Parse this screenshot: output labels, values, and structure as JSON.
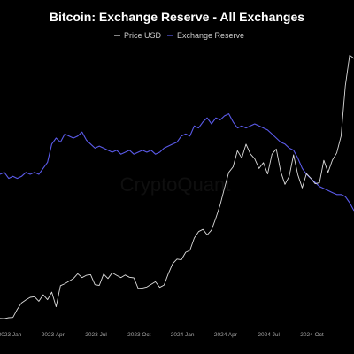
{
  "chart_data": {
    "type": "line",
    "title": "Bitcoin: Exchange Reserve - All Exchanges",
    "watermark": "CryptoQuant",
    "legend": {
      "placement": "top-center"
    },
    "grid": false,
    "xlim": [
      0,
      24.6
    ],
    "x_ticks": [
      "2023 Jan",
      "2023 Apr",
      "2023 Jul",
      "2023 Oct",
      "2024 Jan",
      "2024 Apr",
      "2024 Jul",
      "2024 Oct"
    ],
    "colors": {
      "background": "#000000",
      "price": "#dcdcdc",
      "reserve": "#5b5bea",
      "title": "#ffffff",
      "ticks": "#a8a8a8"
    },
    "series": [
      {
        "name": "Price USD",
        "x": [
          0,
          0.3,
          0.6,
          0.9,
          1.2,
          1.5,
          1.8,
          2.1,
          2.4,
          2.7,
          3.0,
          3.3,
          3.6,
          3.9,
          4.2,
          4.5,
          4.8,
          5.1,
          5.4,
          5.7,
          6.0,
          6.3,
          6.6,
          6.9,
          7.2,
          7.5,
          7.8,
          8.1,
          8.4,
          8.7,
          9.0,
          9.3,
          9.6,
          9.9,
          10.2,
          10.5,
          10.8,
          11.1,
          11.4,
          11.7,
          12.0,
          12.3,
          12.6,
          12.9,
          13.2,
          13.5,
          13.8,
          14.1,
          14.4,
          14.7,
          15.0,
          15.3,
          15.6,
          15.9,
          16.2,
          16.5,
          16.8,
          17.1,
          17.4,
          17.7,
          18.0,
          18.3,
          18.6,
          18.9,
          19.2,
          19.5,
          19.8,
          20.1,
          20.4,
          20.7,
          21.0,
          21.3,
          21.6,
          21.9,
          22.2,
          22.5,
          22.8,
          23.1,
          23.4,
          23.7,
          24.0,
          24.3,
          24.6
        ],
        "values": [
          16700,
          16600,
          16900,
          17000,
          19500,
          21500,
          22400,
          23200,
          23400,
          22000,
          24000,
          22500,
          24800,
          20300,
          26800,
          27400,
          28200,
          29000,
          30500,
          29300,
          30000,
          30200,
          27100,
          26900,
          30400,
          29000,
          30800,
          30000,
          29300,
          30100,
          29400,
          29200,
          26000,
          26100,
          26400,
          27200,
          28000,
          26300,
          27000,
          30500,
          33600,
          35000,
          34800,
          37100,
          37700,
          41500,
          43500,
          44200,
          42500,
          44000,
          47700,
          51800,
          57000,
          61800,
          63500,
          68500,
          66200,
          70500,
          67500,
          66000,
          63000,
          64800,
          61300,
          67400,
          69000,
          62100,
          58100,
          60600,
          67200,
          61000,
          57000,
          61400,
          60000,
          58300,
          58600,
          65500,
          61800,
          65600,
          67800,
          73000,
          88500,
          98000,
          97000
        ]
      },
      {
        "name": "Exchange Reserve",
        "x": [
          0,
          0.3,
          0.6,
          0.9,
          1.2,
          1.5,
          1.8,
          2.1,
          2.4,
          2.7,
          3.0,
          3.3,
          3.6,
          3.9,
          4.2,
          4.5,
          4.8,
          5.1,
          5.4,
          5.7,
          6.0,
          6.3,
          6.6,
          6.9,
          7.2,
          7.5,
          7.8,
          8.1,
          8.4,
          8.7,
          9.0,
          9.3,
          9.6,
          9.9,
          10.2,
          10.5,
          10.8,
          11.1,
          11.4,
          11.7,
          12.0,
          12.3,
          12.6,
          12.9,
          13.2,
          13.5,
          13.8,
          14.1,
          14.4,
          14.7,
          15.0,
          15.3,
          15.6,
          15.9,
          16.2,
          16.5,
          16.8,
          17.1,
          17.4,
          17.7,
          18.0,
          18.3,
          18.6,
          18.9,
          19.2,
          19.5,
          19.8,
          20.1,
          20.4,
          20.7,
          21.0,
          21.3,
          21.6,
          21.9,
          22.2,
          22.5,
          22.8,
          23.1,
          23.4,
          23.7,
          24.0,
          24.3,
          24.6
        ],
        "values": [
          0.32,
          0.33,
          0.3,
          0.31,
          0.3,
          0.31,
          0.33,
          0.32,
          0.33,
          0.32,
          0.35,
          0.38,
          0.47,
          0.5,
          0.48,
          0.52,
          0.51,
          0.5,
          0.51,
          0.53,
          0.49,
          0.47,
          0.45,
          0.46,
          0.45,
          0.44,
          0.43,
          0.44,
          0.42,
          0.43,
          0.44,
          0.42,
          0.43,
          0.44,
          0.43,
          0.44,
          0.42,
          0.43,
          0.45,
          0.46,
          0.47,
          0.48,
          0.51,
          0.52,
          0.51,
          0.56,
          0.55,
          0.58,
          0.6,
          0.57,
          0.6,
          0.59,
          0.61,
          0.62,
          0.58,
          0.55,
          0.56,
          0.55,
          0.56,
          0.57,
          0.56,
          0.55,
          0.54,
          0.52,
          0.5,
          0.48,
          0.47,
          0.45,
          0.44,
          0.4,
          0.35,
          0.32,
          0.3,
          0.28,
          0.26,
          0.25,
          0.24,
          0.23,
          0.22,
          0.22,
          0.21,
          0.18,
          0.14
        ]
      }
    ]
  }
}
